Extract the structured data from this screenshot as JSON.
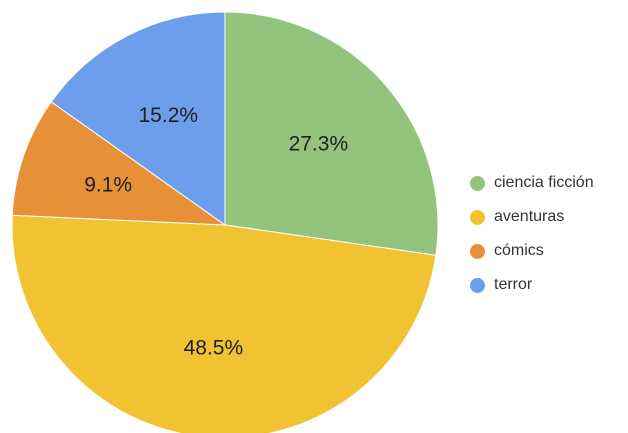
{
  "chart_data": {
    "type": "pie",
    "title": "",
    "legend_position": "right",
    "slices": [
      {
        "name": "ciencia ficción",
        "value": 27.3,
        "label": "27.3%",
        "color": "#93c47d"
      },
      {
        "name": "aventuras",
        "value": 48.5,
        "label": "48.5%",
        "color": "#f1c232"
      },
      {
        "name": "cómics",
        "value": 9.1,
        "label": "9.1%",
        "color": "#e69138"
      },
      {
        "name": "terror",
        "value": 15.2,
        "label": "15.2%",
        "color": "#6d9eeb"
      }
    ]
  }
}
